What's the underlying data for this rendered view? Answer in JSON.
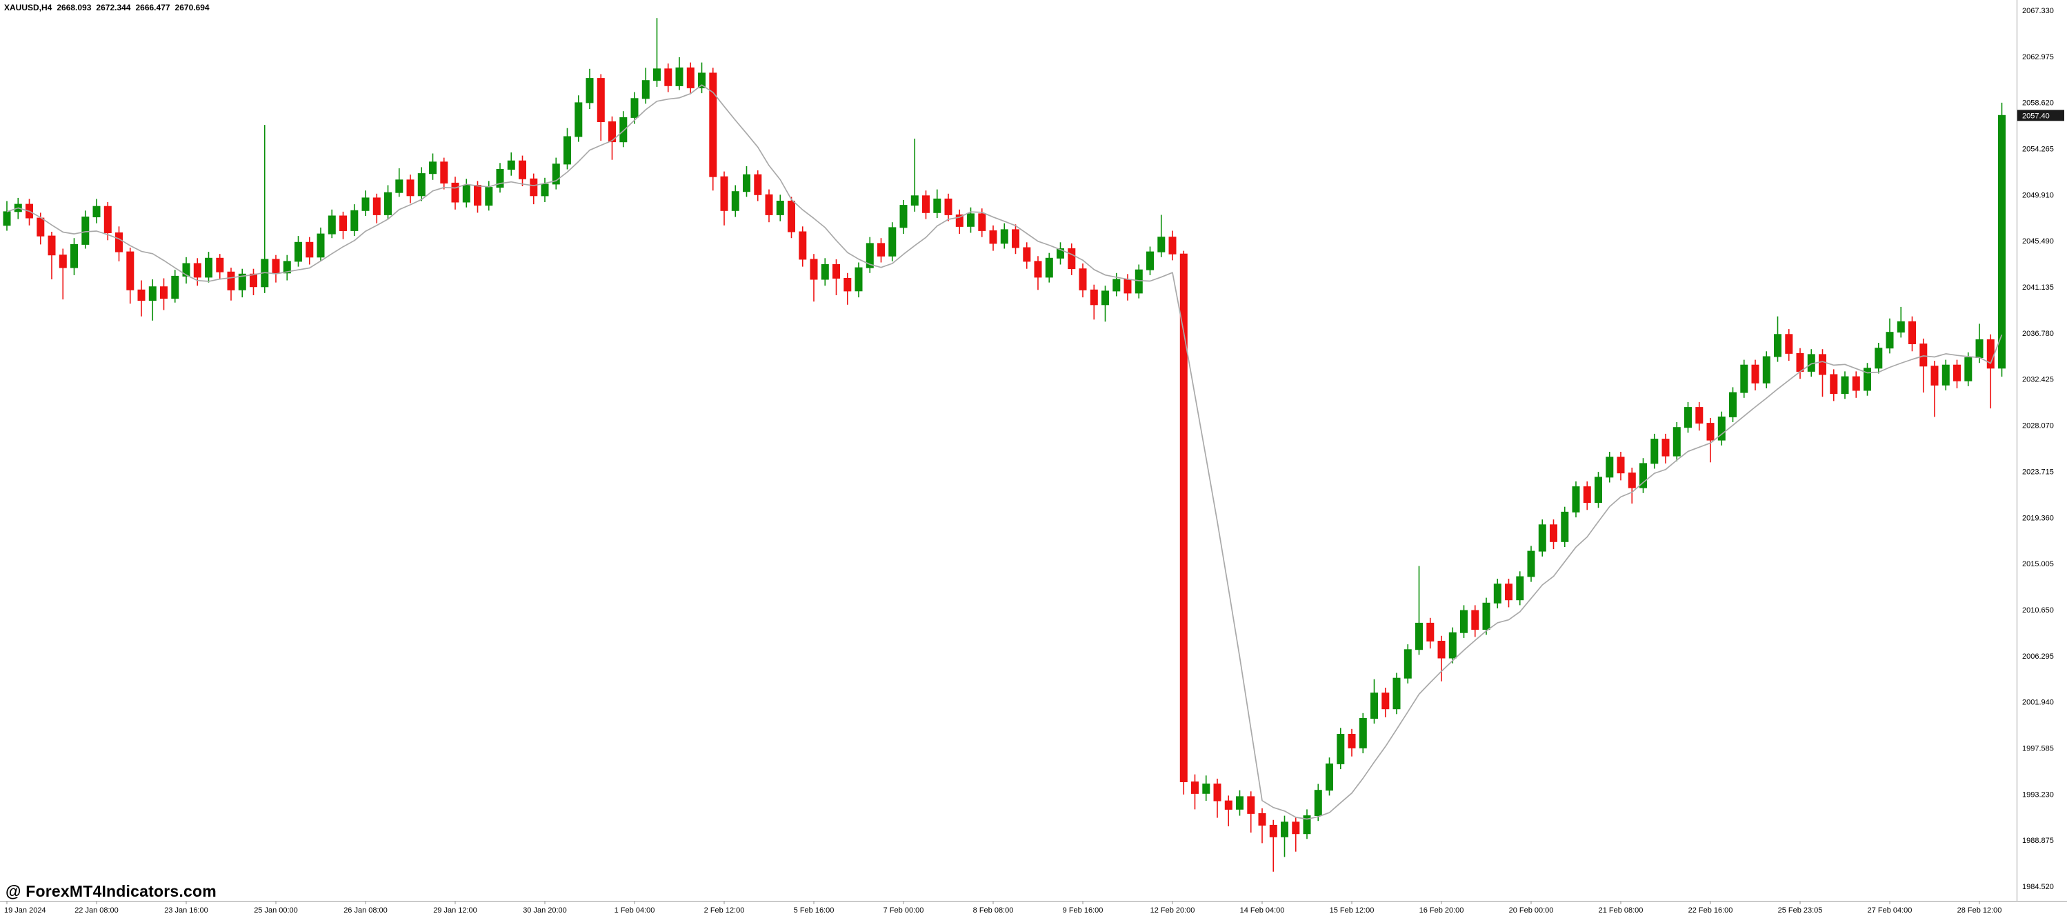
{
  "header": {
    "symbol_timeframe": "XAUUSD,H4",
    "open": "2668.093",
    "high": "2672.344",
    "low": "2666.477",
    "close": "2670.694"
  },
  "branding": {
    "watermark": "@ ForexMT4Indicators.com"
  },
  "colors": {
    "background": "#ffffff",
    "bull": "#0a8f0a",
    "bear": "#ee1111",
    "ma_line": "#a9a9a9",
    "axis_text": "#000000",
    "separator": "#9a9a9a",
    "marker_bg": "#1b1b1b",
    "marker_text": "#ffffff"
  },
  "price_axis": {
    "side": "right",
    "marker_value": "2057.40",
    "labels": [
      "2067.330",
      "2062.975",
      "2058.620",
      "2054.265",
      "2049.910",
      "2045.490",
      "2041.135",
      "2036.780",
      "2032.425",
      "2028.070",
      "2023.715",
      "2019.360",
      "2015.005",
      "2010.650",
      "2006.295",
      "2001.940",
      "1997.585",
      "1993.230",
      "1988.875",
      "1984.520"
    ]
  },
  "time_axis": {
    "labels": [
      "19 Jan 2024",
      "22 Jan 08:00",
      "23 Jan 16:00",
      "25 Jan 00:00",
      "26 Jan 08:00",
      "29 Jan 12:00",
      "30 Jan 20:00",
      "1 Feb 04:00",
      "2 Feb 12:00",
      "5 Feb 16:00",
      "7 Feb 00:00",
      "8 Feb 08:00",
      "9 Feb 16:00",
      "12 Feb 20:00",
      "14 Feb 04:00",
      "15 Feb 12:00",
      "16 Feb 20:00",
      "20 Feb 00:00",
      "21 Feb 08:00",
      "22 Feb 16:00",
      "25 Feb 23:05",
      "27 Feb 04:00",
      "28 Feb 12:00"
    ]
  },
  "chart_data": {
    "type": "candlestick",
    "title": "XAUUSD H4 candlestick chart",
    "symbol": "XAUUSD",
    "timeframe": "H4",
    "grid": "off",
    "legend": "none",
    "y_axis_range": [
      1984.52,
      2067.33
    ],
    "bars_per_time_label": 8,
    "overlays": [
      {
        "name": "moving-average",
        "type": "sma",
        "period": 8
      }
    ],
    "candles_ohlc": [
      [
        2047.0,
        2049.3,
        2046.5,
        2048.3
      ],
      [
        2048.3,
        2049.6,
        2047.6,
        2049.0
      ],
      [
        2049.0,
        2049.5,
        2047.0,
        2047.7
      ],
      [
        2047.7,
        2048.2,
        2045.2,
        2046.0
      ],
      [
        2046.0,
        2046.4,
        2041.9,
        2044.2
      ],
      [
        2044.2,
        2044.8,
        2040.0,
        2043.0
      ],
      [
        2043.0,
        2045.8,
        2042.3,
        2045.2
      ],
      [
        2045.2,
        2048.4,
        2044.8,
        2047.8
      ],
      [
        2047.8,
        2049.5,
        2047.2,
        2048.8
      ],
      [
        2048.8,
        2049.2,
        2045.6,
        2046.3
      ],
      [
        2046.3,
        2046.9,
        2043.6,
        2044.5
      ],
      [
        2044.5,
        2044.9,
        2039.6,
        2040.9
      ],
      [
        2040.9,
        2041.8,
        2038.4,
        2039.9
      ],
      [
        2039.9,
        2041.9,
        2038.0,
        2041.2
      ],
      [
        2041.2,
        2042.0,
        2039.0,
        2040.1
      ],
      [
        2040.1,
        2042.8,
        2039.7,
        2042.2
      ],
      [
        2042.2,
        2044.0,
        2041.5,
        2043.4
      ],
      [
        2043.4,
        2043.9,
        2041.3,
        2042.1
      ],
      [
        2042.1,
        2044.5,
        2041.6,
        2043.9
      ],
      [
        2043.9,
        2044.3,
        2041.9,
        2042.6
      ],
      [
        2042.6,
        2043.0,
        2039.9,
        2040.9
      ],
      [
        2040.9,
        2042.9,
        2040.2,
        2042.4
      ],
      [
        2042.4,
        2042.9,
        2040.4,
        2041.2
      ],
      [
        2041.2,
        2056.5,
        2040.6,
        2043.8
      ],
      [
        2043.8,
        2044.2,
        2041.6,
        2042.5
      ],
      [
        2042.5,
        2044.2,
        2041.8,
        2043.6
      ],
      [
        2043.6,
        2046.0,
        2043.1,
        2045.4
      ],
      [
        2045.4,
        2045.9,
        2043.3,
        2044.0
      ],
      [
        2044.0,
        2046.8,
        2043.6,
        2046.2
      ],
      [
        2046.2,
        2048.5,
        2045.8,
        2047.9
      ],
      [
        2047.9,
        2048.3,
        2045.7,
        2046.5
      ],
      [
        2046.5,
        2049.0,
        2046.0,
        2048.4
      ],
      [
        2048.4,
        2050.3,
        2047.9,
        2049.6
      ],
      [
        2049.6,
        2050.0,
        2047.2,
        2048.0
      ],
      [
        2048.0,
        2050.8,
        2047.6,
        2050.1
      ],
      [
        2050.1,
        2052.4,
        2049.7,
        2051.3
      ],
      [
        2051.3,
        2051.8,
        2049.1,
        2049.8
      ],
      [
        2049.8,
        2052.5,
        2049.3,
        2051.9
      ],
      [
        2051.9,
        2053.8,
        2051.3,
        2053.0
      ],
      [
        2053.0,
        2053.4,
        2050.4,
        2051.0
      ],
      [
        2051.0,
        2051.6,
        2048.5,
        2049.2
      ],
      [
        2049.2,
        2051.4,
        2048.7,
        2050.8
      ],
      [
        2050.8,
        2051.2,
        2048.2,
        2048.9
      ],
      [
        2048.9,
        2051.2,
        2048.4,
        2050.6
      ],
      [
        2050.6,
        2052.9,
        2050.1,
        2052.3
      ],
      [
        2052.3,
        2053.9,
        2051.7,
        2053.1
      ],
      [
        2053.1,
        2053.6,
        2050.7,
        2051.4
      ],
      [
        2051.4,
        2051.9,
        2049.0,
        2049.8
      ],
      [
        2049.8,
        2051.5,
        2049.2,
        2050.9
      ],
      [
        2050.9,
        2053.4,
        2050.4,
        2052.8
      ],
      [
        2052.8,
        2056.2,
        2052.3,
        2055.4
      ],
      [
        2055.4,
        2059.3,
        2054.9,
        2058.6
      ],
      [
        2058.6,
        2061.8,
        2058.0,
        2060.9
      ],
      [
        2060.9,
        2061.3,
        2055.0,
        2056.8
      ],
      [
        2056.8,
        2057.3,
        2053.2,
        2054.9
      ],
      [
        2054.9,
        2057.8,
        2054.4,
        2057.2
      ],
      [
        2057.2,
        2059.6,
        2056.6,
        2059.0
      ],
      [
        2059.0,
        2061.9,
        2058.5,
        2060.7
      ],
      [
        2060.7,
        2066.6,
        2060.1,
        2061.8
      ],
      [
        2061.8,
        2062.3,
        2059.6,
        2060.2
      ],
      [
        2060.2,
        2062.9,
        2059.8,
        2061.9
      ],
      [
        2061.9,
        2062.4,
        2059.4,
        2060.0
      ],
      [
        2060.0,
        2062.4,
        2059.5,
        2061.4
      ],
      [
        2061.4,
        2061.9,
        2050.3,
        2051.6
      ],
      [
        2051.6,
        2052.1,
        2047.0,
        2048.4
      ],
      [
        2048.4,
        2050.8,
        2047.8,
        2050.2
      ],
      [
        2050.2,
        2052.6,
        2049.7,
        2051.8
      ],
      [
        2051.8,
        2052.2,
        2049.3,
        2049.9
      ],
      [
        2049.9,
        2050.4,
        2047.3,
        2048.0
      ],
      [
        2048.0,
        2049.9,
        2047.4,
        2049.3
      ],
      [
        2049.3,
        2049.7,
        2045.8,
        2046.4
      ],
      [
        2046.4,
        2046.9,
        2043.1,
        2043.8
      ],
      [
        2043.8,
        2044.3,
        2039.8,
        2041.9
      ],
      [
        2041.9,
        2043.9,
        2041.3,
        2043.3
      ],
      [
        2043.3,
        2043.8,
        2040.4,
        2042.0
      ],
      [
        2042.0,
        2042.5,
        2039.5,
        2040.8
      ],
      [
        2040.8,
        2043.5,
        2040.2,
        2043.0
      ],
      [
        2043.0,
        2045.9,
        2042.5,
        2045.3
      ],
      [
        2045.3,
        2045.8,
        2043.5,
        2044.1
      ],
      [
        2044.1,
        2047.3,
        2043.6,
        2046.8
      ],
      [
        2046.8,
        2049.4,
        2046.2,
        2048.9
      ],
      [
        2048.9,
        2055.2,
        2048.3,
        2049.8
      ],
      [
        2049.8,
        2050.3,
        2047.6,
        2048.2
      ],
      [
        2048.2,
        2050.4,
        2047.7,
        2049.5
      ],
      [
        2049.5,
        2050.0,
        2047.4,
        2048.0
      ],
      [
        2048.0,
        2048.5,
        2046.2,
        2046.9
      ],
      [
        2046.9,
        2048.7,
        2046.3,
        2048.1
      ],
      [
        2048.1,
        2048.6,
        2045.9,
        2046.5
      ],
      [
        2046.5,
        2047.0,
        2044.6,
        2045.3
      ],
      [
        2045.3,
        2047.2,
        2044.8,
        2046.6
      ],
      [
        2046.6,
        2047.1,
        2044.3,
        2044.9
      ],
      [
        2044.9,
        2045.4,
        2042.9,
        2043.6
      ],
      [
        2043.6,
        2044.1,
        2040.9,
        2042.1
      ],
      [
        2042.1,
        2044.4,
        2041.6,
        2043.9
      ],
      [
        2043.9,
        2045.4,
        2043.3,
        2044.8
      ],
      [
        2044.8,
        2045.3,
        2042.3,
        2042.9
      ],
      [
        2042.9,
        2043.4,
        2040.2,
        2040.9
      ],
      [
        2040.9,
        2041.4,
        2038.1,
        2039.5
      ],
      [
        2039.5,
        2041.3,
        2037.9,
        2040.8
      ],
      [
        2040.8,
        2042.5,
        2040.3,
        2041.9
      ],
      [
        2041.9,
        2042.4,
        2039.9,
        2040.6
      ],
      [
        2040.6,
        2043.3,
        2040.1,
        2042.8
      ],
      [
        2042.8,
        2045.0,
        2042.3,
        2044.5
      ],
      [
        2044.5,
        2048.0,
        2044.0,
        2045.9
      ],
      [
        2045.9,
        2046.5,
        2043.7,
        2044.3
      ],
      [
        2044.3,
        2044.6,
        1993.2,
        1994.4
      ],
      [
        1994.4,
        1995.1,
        1991.8,
        1993.3
      ],
      [
        1993.3,
        1995.0,
        1992.6,
        1994.2
      ],
      [
        1994.2,
        1994.7,
        1991.0,
        1992.6
      ],
      [
        1992.6,
        1993.1,
        1990.2,
        1991.8
      ],
      [
        1991.8,
        1993.6,
        1991.2,
        1993.0
      ],
      [
        1993.0,
        1993.5,
        1989.6,
        1991.4
      ],
      [
        1991.4,
        1991.9,
        1988.6,
        1990.3
      ],
      [
        1990.3,
        1990.8,
        1985.9,
        1989.2
      ],
      [
        1989.2,
        1991.2,
        1987.3,
        1990.6
      ],
      [
        1990.6,
        1991.1,
        1987.8,
        1989.5
      ],
      [
        1989.5,
        1991.8,
        1989.0,
        1991.2
      ],
      [
        1991.2,
        1994.2,
        1990.7,
        1993.6
      ],
      [
        1993.6,
        1996.7,
        1993.1,
        1996.1
      ],
      [
        1996.1,
        1999.5,
        1995.6,
        1998.9
      ],
      [
        1998.9,
        1999.4,
        1996.8,
        1997.6
      ],
      [
        1997.6,
        2000.9,
        1997.1,
        2000.4
      ],
      [
        2000.4,
        2004.1,
        1999.9,
        2002.8
      ],
      [
        2002.8,
        2003.3,
        2000.5,
        2001.3
      ],
      [
        2001.3,
        2004.7,
        2000.8,
        2004.2
      ],
      [
        2004.2,
        2007.4,
        2003.7,
        2006.9
      ],
      [
        2006.9,
        2014.8,
        2006.4,
        2009.4
      ],
      [
        2009.4,
        2009.9,
        2007.0,
        2007.7
      ],
      [
        2007.7,
        2008.2,
        2003.9,
        2006.1
      ],
      [
        2006.1,
        2009.0,
        2005.6,
        2008.5
      ],
      [
        2008.5,
        2011.1,
        2008.0,
        2010.6
      ],
      [
        2010.6,
        2011.1,
        2008.1,
        2008.8
      ],
      [
        2008.8,
        2011.8,
        2008.3,
        2011.3
      ],
      [
        2011.3,
        2013.6,
        2010.8,
        2013.1
      ],
      [
        2013.1,
        2013.6,
        2010.9,
        2011.6
      ],
      [
        2011.6,
        2014.3,
        2011.1,
        2013.8
      ],
      [
        2013.8,
        2016.7,
        2013.3,
        2016.2
      ],
      [
        2016.2,
        2019.2,
        2015.7,
        2018.7
      ],
      [
        2018.7,
        2019.2,
        2016.4,
        2017.1
      ],
      [
        2017.1,
        2020.4,
        2016.6,
        2019.9
      ],
      [
        2019.9,
        2022.8,
        2019.4,
        2022.3
      ],
      [
        2022.3,
        2022.8,
        2020.1,
        2020.8
      ],
      [
        2020.8,
        2023.7,
        2020.3,
        2023.2
      ],
      [
        2023.2,
        2025.6,
        2022.7,
        2025.1
      ],
      [
        2025.1,
        2025.6,
        2022.9,
        2023.6
      ],
      [
        2023.6,
        2024.1,
        2020.7,
        2022.2
      ],
      [
        2022.2,
        2025.0,
        2021.7,
        2024.5
      ],
      [
        2024.5,
        2027.3,
        2024.0,
        2026.8
      ],
      [
        2026.8,
        2027.3,
        2024.5,
        2025.2
      ],
      [
        2025.2,
        2028.4,
        2024.7,
        2027.9
      ],
      [
        2027.9,
        2030.3,
        2027.4,
        2029.8
      ],
      [
        2029.8,
        2030.3,
        2027.6,
        2028.3
      ],
      [
        2028.3,
        2028.8,
        2024.6,
        2026.7
      ],
      [
        2026.7,
        2029.4,
        2026.2,
        2028.9
      ],
      [
        2028.9,
        2031.7,
        2028.4,
        2031.2
      ],
      [
        2031.2,
        2034.3,
        2030.7,
        2033.8
      ],
      [
        2033.8,
        2034.3,
        2031.4,
        2032.1
      ],
      [
        2032.1,
        2035.1,
        2031.6,
        2034.6
      ],
      [
        2034.6,
        2038.4,
        2034.1,
        2036.7
      ],
      [
        2036.7,
        2037.2,
        2034.2,
        2034.9
      ],
      [
        2034.9,
        2035.4,
        2032.5,
        2033.2
      ],
      [
        2033.2,
        2035.3,
        2032.7,
        2034.8
      ],
      [
        2034.8,
        2035.3,
        2030.8,
        2032.9
      ],
      [
        2032.9,
        2033.4,
        2030.4,
        2031.1
      ],
      [
        2031.1,
        2033.2,
        2030.6,
        2032.7
      ],
      [
        2032.7,
        2033.2,
        2030.7,
        2031.4
      ],
      [
        2031.4,
        2034.0,
        2030.9,
        2033.5
      ],
      [
        2033.5,
        2035.9,
        2033.0,
        2035.4
      ],
      [
        2035.4,
        2038.2,
        2034.9,
        2036.9
      ],
      [
        2036.9,
        2039.3,
        2036.4,
        2037.9
      ],
      [
        2037.9,
        2038.4,
        2035.1,
        2035.8
      ],
      [
        2035.8,
        2036.3,
        2031.2,
        2033.7
      ],
      [
        2033.7,
        2034.2,
        2028.9,
        2031.9
      ],
      [
        2031.9,
        2034.3,
        2031.4,
        2033.8
      ],
      [
        2033.8,
        2034.3,
        2031.6,
        2032.3
      ],
      [
        2032.3,
        2035.0,
        2031.8,
        2034.5
      ],
      [
        2034.5,
        2037.7,
        2034.0,
        2036.2
      ],
      [
        2036.2,
        2036.7,
        2029.7,
        2033.5
      ],
      [
        2033.5,
        2058.6,
        2032.7,
        2057.4
      ]
    ]
  }
}
